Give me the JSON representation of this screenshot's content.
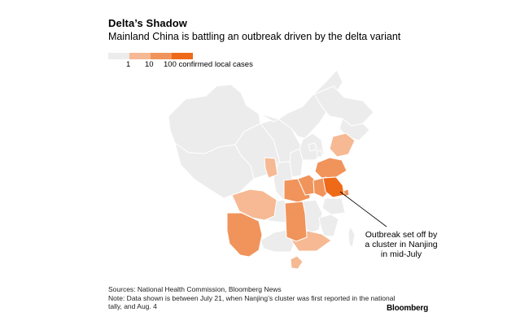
{
  "title": "Delta’s Shadow",
  "subtitle": "Mainland China is battling an outbreak driven by the delta variant",
  "legend": {
    "labels": [
      "1",
      "10",
      "100 confirmed local cases"
    ],
    "colors": [
      "#ececec",
      "#f6b993",
      "#f0945b",
      "#ee6a19"
    ]
  },
  "map": {
    "colors": {
      "none": "#ececec",
      "low": "#f6b993",
      "mid": "#f0945b",
      "high": "#ee6a19",
      "outline": "#ffffff",
      "border": "#c9c9c9"
    }
  },
  "annotation": "Outbreak set off by a cluster in Nanjing in mid-July",
  "footer": {
    "source": "Sources: National Health Commission, Bloomberg News",
    "note": "Note: Data shown is between July 21, when Nanjing’s cluster was first reported in the national tally, and Aug. 4"
  },
  "brand": "Bloomberg"
}
